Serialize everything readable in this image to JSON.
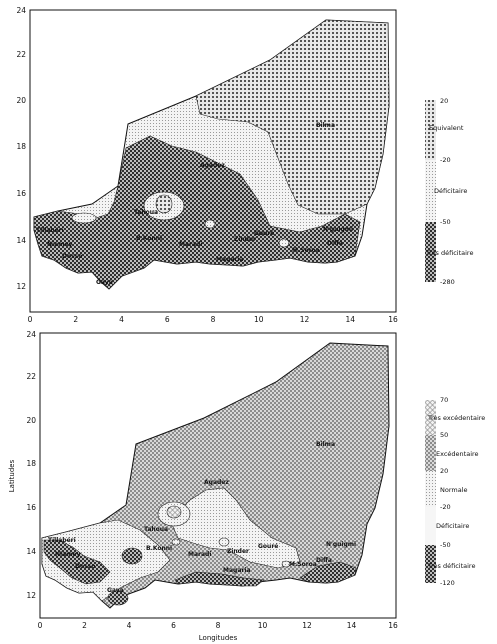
{
  "maps": [
    {
      "x_ticks": [
        "0",
        "2",
        "4",
        "6",
        "8",
        "10",
        "12",
        "14",
        "16"
      ],
      "y_ticks": [
        "12",
        "14",
        "16",
        "18",
        "20",
        "22",
        "24"
      ],
      "xlabel": "",
      "ylabel": "",
      "cities": [
        "Bilma",
        "Agadez",
        "Tahoua",
        "Tillabéri",
        "Niamey",
        "Dosso",
        "Gaya",
        "B.Konni",
        "Maradi",
        "Zinder",
        "Gouré",
        "N'guigmi",
        "Diffa",
        "Magaria",
        "M.Soroa"
      ],
      "legend": {
        "values": [
          "20",
          "-20",
          "-50",
          "-280"
        ],
        "classes": [
          "Equivalent",
          "Déficitaire",
          "Très déficitaire"
        ]
      }
    },
    {
      "x_ticks": [
        "0",
        "2",
        "4",
        "6",
        "8",
        "10",
        "12",
        "14",
        "16"
      ],
      "y_ticks": [
        "12",
        "14",
        "16",
        "18",
        "20",
        "22",
        "24"
      ],
      "xlabel": "Longitudes",
      "ylabel": "Latitudes",
      "cities": [
        "Bilma",
        "Agadez",
        "Tahoua",
        "Tillabéri",
        "Niamey",
        "Dosso",
        "Gaya",
        "B.Konni",
        "Maradi",
        "Zinder",
        "Gouré",
        "N'guigmi",
        "Diffa",
        "Magaria",
        "M.Soroa"
      ],
      "legend": {
        "values": [
          "70",
          "50",
          "20",
          "-20",
          "-50",
          "-120"
        ],
        "classes": [
          "Très excédentaire",
          "Excédentaire",
          "Normale",
          "Déficitaire",
          "Très déficitaire"
        ]
      }
    }
  ],
  "colors": {
    "frame": "#111111",
    "light_fill": "#dcdcdc",
    "mid_fill": "#9a9a9a",
    "dark_fill": "#6a6a6a"
  }
}
